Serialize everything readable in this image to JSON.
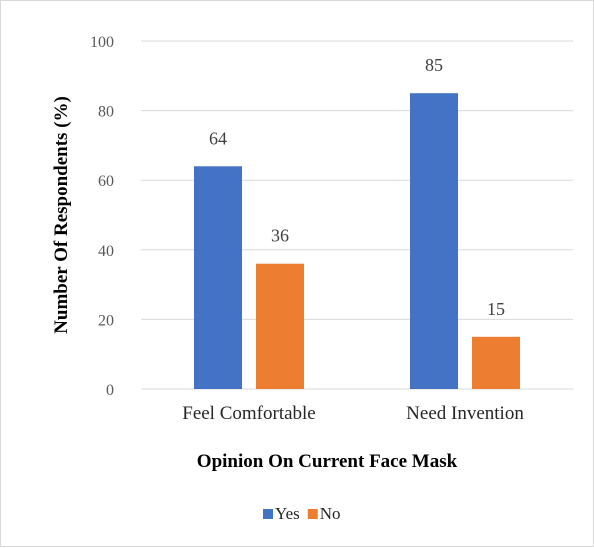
{
  "chart_data": {
    "type": "bar",
    "categories": [
      "Feel Comfortable",
      "Need Invention"
    ],
    "series": [
      {
        "name": "Yes",
        "values": [
          64,
          85
        ],
        "color": "#4472C4"
      },
      {
        "name": "No",
        "values": [
          36,
          15
        ],
        "color": "#ED7D31"
      }
    ],
    "title": "",
    "xlabel": "Opinion On Current Face Mask",
    "ylabel": "Number Of Respondents (%)",
    "ylim": [
      0,
      100
    ],
    "yticks": [
      0,
      20,
      40,
      60,
      80,
      100
    ],
    "grid": true,
    "legend": "bottom",
    "data_labels": true
  }
}
